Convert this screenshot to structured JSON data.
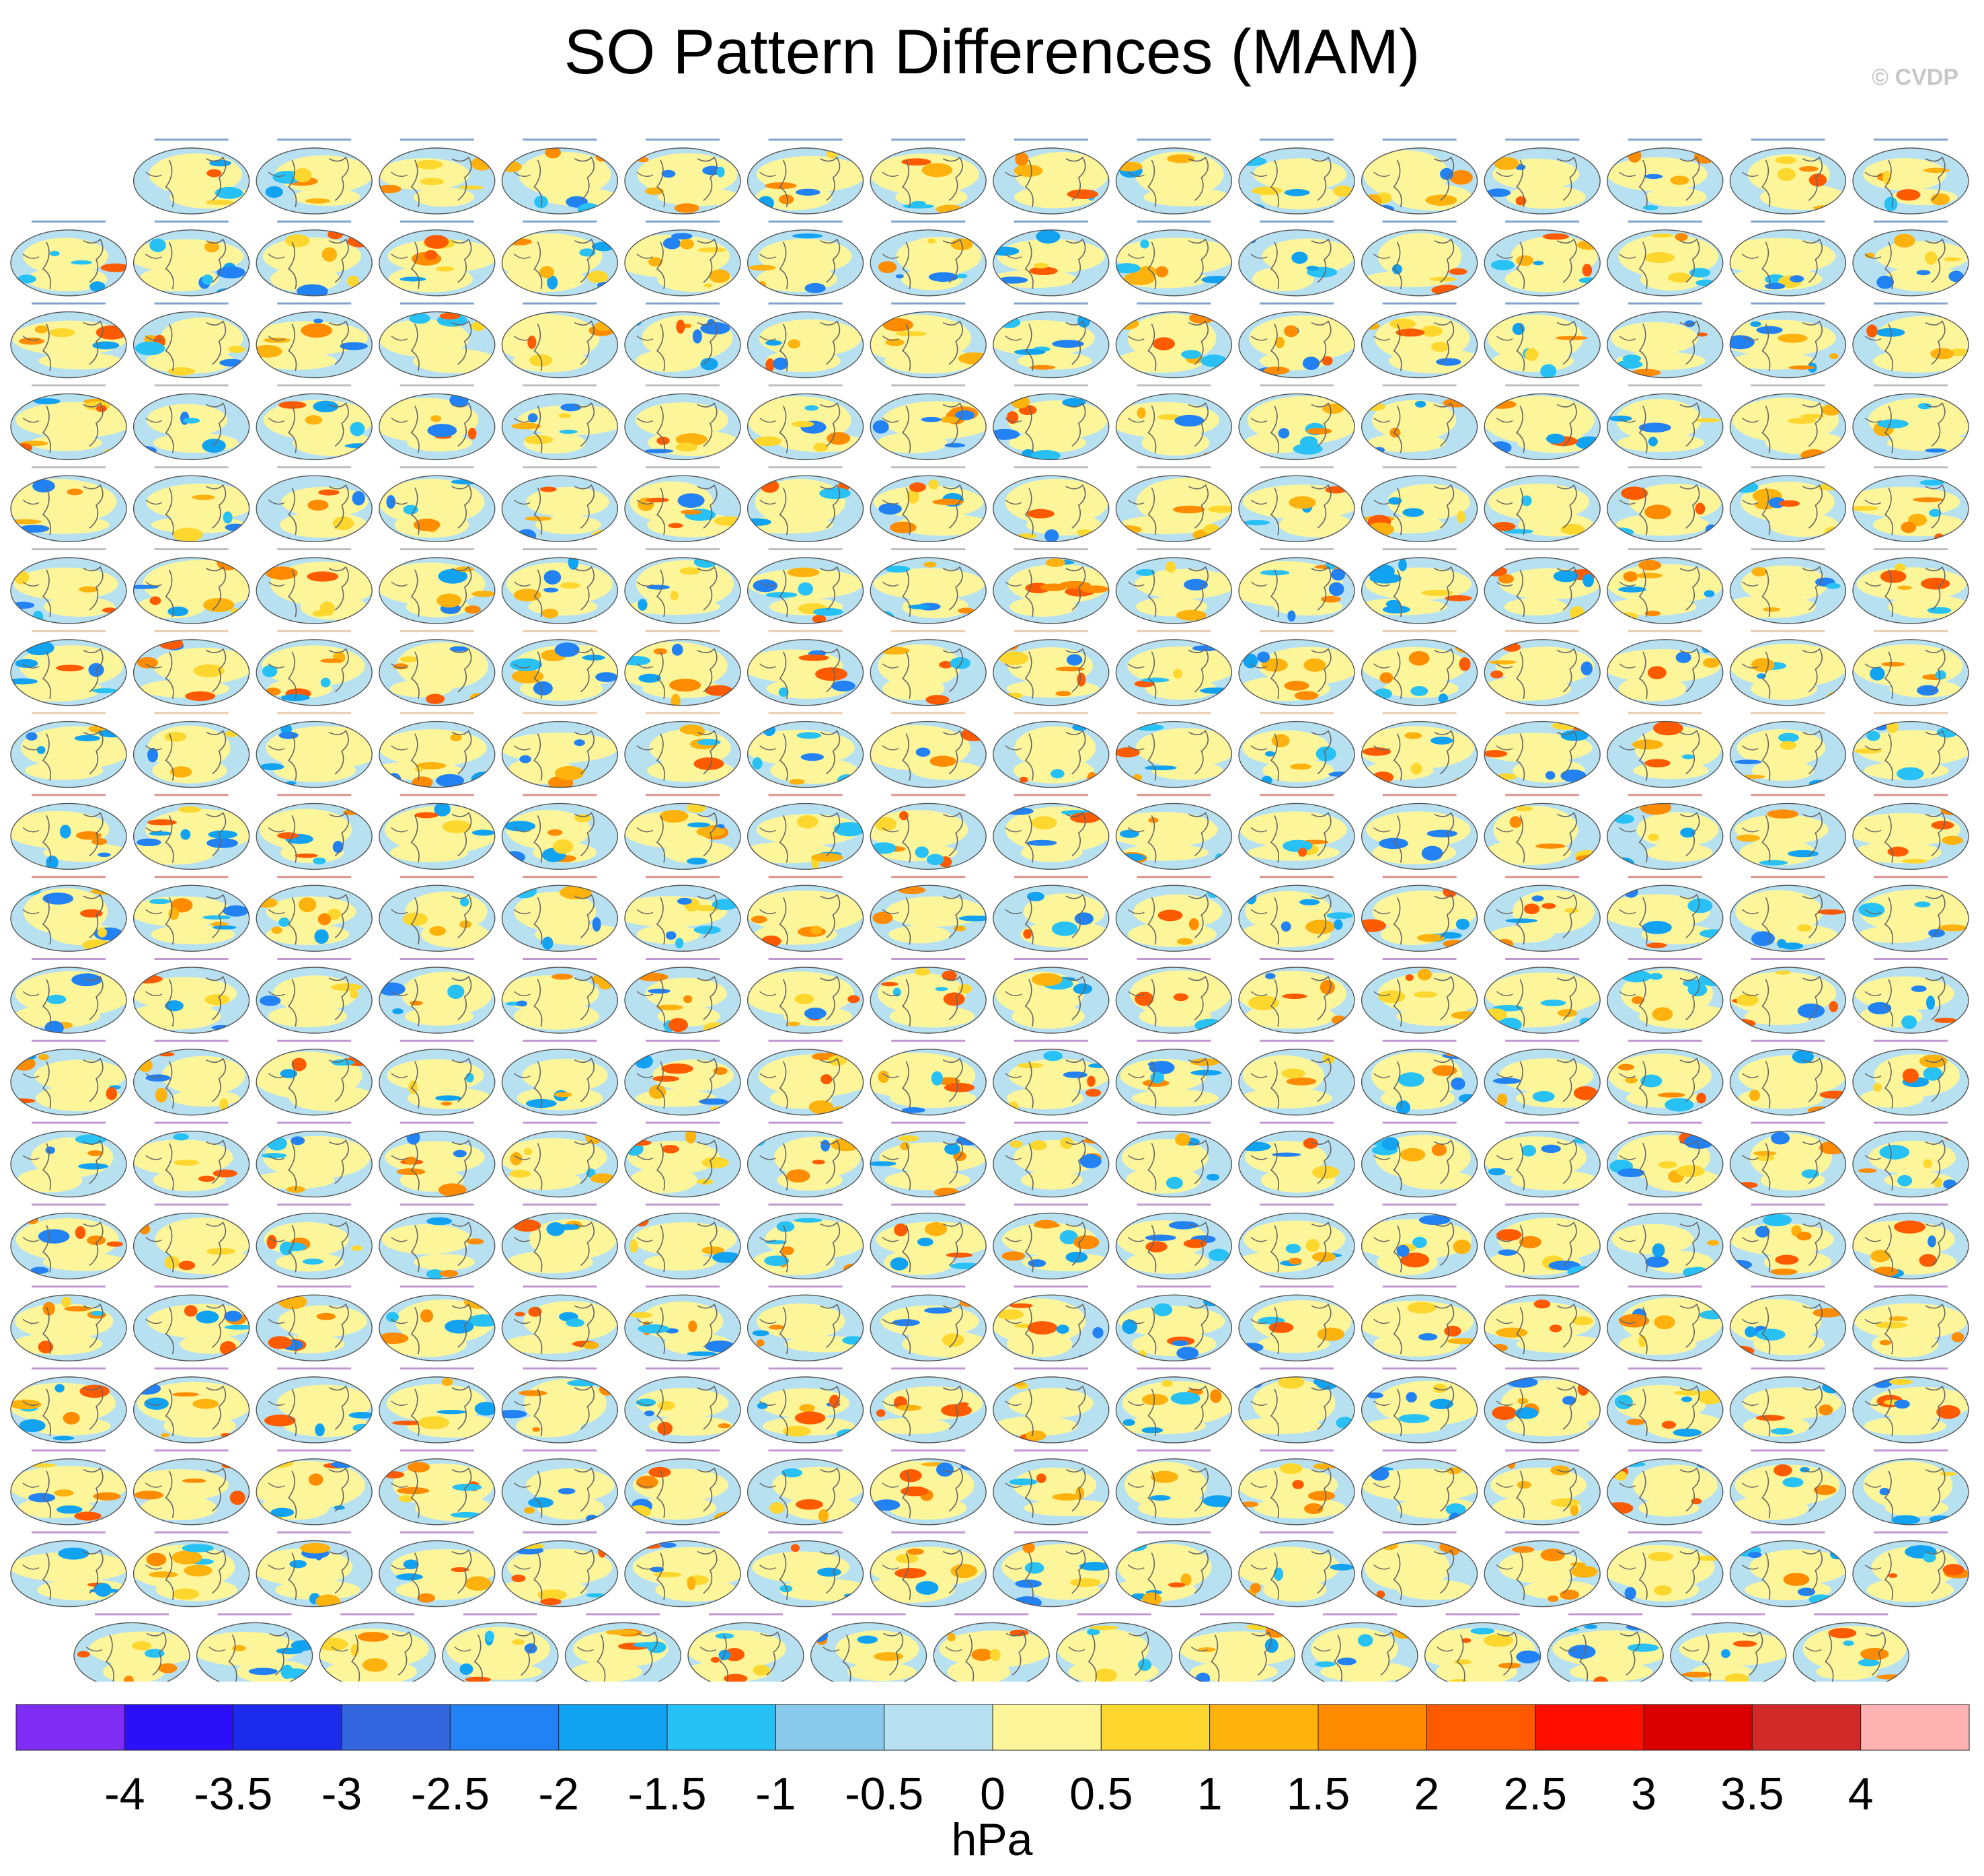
{
  "title": "SO Pattern Differences (MAM)",
  "copyright": "© CVDP",
  "chart_data": {
    "type": "heatmap",
    "description_type": "small-multiples",
    "title": "SO Pattern Differences (MAM)",
    "panel_grid": {
      "rows": 19,
      "columns": 16,
      "panel_counts_per_row": [
        15,
        16,
        16,
        16,
        16,
        16,
        16,
        16,
        16,
        16,
        16,
        16,
        16,
        16,
        16,
        16,
        16,
        16,
        15
      ]
    },
    "panel_label_colors": [
      "#1a5aa8",
      "#8a8a8a",
      "#d6a06a",
      "#c0392b",
      "#8e44ad"
    ],
    "colorbar": {
      "label": "hPa",
      "tick_labels": [
        "-4",
        "-3.5",
        "-3",
        "-2.5",
        "-2",
        "-1.5",
        "-1",
        "-0.5",
        "0",
        "0.5",
        "1",
        "1.5",
        "2",
        "2.5",
        "3",
        "3.5",
        "4"
      ],
      "colors": [
        "#7f2cf5",
        "#2a0ff8",
        "#1c2bec",
        "#3265de",
        "#2282f3",
        "#11a2f2",
        "#27c1f6",
        "#89c9ec",
        "#b7e1f1",
        "#fdf59a",
        "#fdd72e",
        "#fdb20d",
        "#fe8b00",
        "#fe5b00",
        "#fe0f00",
        "#db0000",
        "#d22a28",
        "#ffb3b3"
      ],
      "range": [
        -4,
        4
      ]
    }
  }
}
